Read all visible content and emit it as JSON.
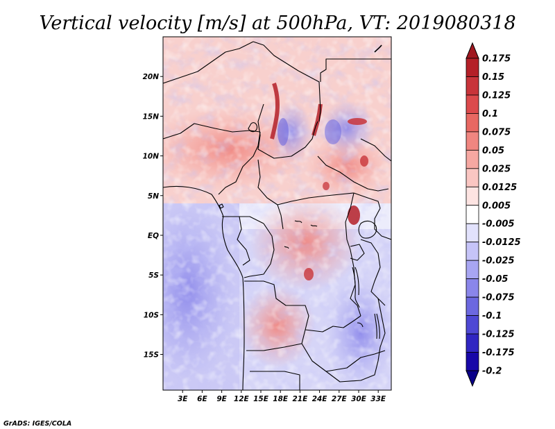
{
  "chart_data": {
    "type": "heatmap",
    "title": "Vertical velocity [m/s] at 500hPa, VT: 2019080318",
    "variable": "Vertical velocity",
    "units": "m/s",
    "level": "500hPa",
    "valid_time": "2019080318",
    "x_range_deg": [
      0,
      35
    ],
    "y_range_deg": [
      -19.5,
      25
    ],
    "x_ticks": [
      {
        "value": 3,
        "label": "3E"
      },
      {
        "value": 6,
        "label": "6E"
      },
      {
        "value": 9,
        "label": "9E"
      },
      {
        "value": 12,
        "label": "12E"
      },
      {
        "value": 15,
        "label": "15E"
      },
      {
        "value": 18,
        "label": "18E"
      },
      {
        "value": 21,
        "label": "21E"
      },
      {
        "value": 24,
        "label": "24E"
      },
      {
        "value": 27,
        "label": "27E"
      },
      {
        "value": 30,
        "label": "30E"
      },
      {
        "value": 33,
        "label": "33E"
      }
    ],
    "y_ticks": [
      {
        "value": 20,
        "label": "20N"
      },
      {
        "value": 15,
        "label": "15N"
      },
      {
        "value": 10,
        "label": "10N"
      },
      {
        "value": 5,
        "label": "5N"
      },
      {
        "value": 0,
        "label": "EQ"
      },
      {
        "value": -5,
        "label": "5S"
      },
      {
        "value": -10,
        "label": "10S"
      },
      {
        "value": -15,
        "label": "15S"
      }
    ],
    "colorbar": {
      "labels": [
        "0.175",
        "0.15",
        "0.125",
        "0.1",
        "0.075",
        "0.05",
        "0.025",
        "0.0125",
        "0.005",
        "-0.005",
        "-0.0125",
        "-0.025",
        "-0.05",
        "-0.075",
        "-0.1",
        "-0.125",
        "-0.175",
        "-0.2"
      ],
      "colors": [
        "#a01820",
        "#b42028",
        "#c8343a",
        "#dc4a4c",
        "#e86862",
        "#f08680",
        "#f6a8a2",
        "#fac6c2",
        "#fde4e2",
        "#ffffff",
        "#e2e2fc",
        "#c6c4f8",
        "#a8a6f2",
        "#8a86ea",
        "#6c68e0",
        "#4e48d4",
        "#3026c2",
        "#1808a8",
        "#0a0088"
      ]
    }
  },
  "credit": "GrADS: IGES/COLA"
}
